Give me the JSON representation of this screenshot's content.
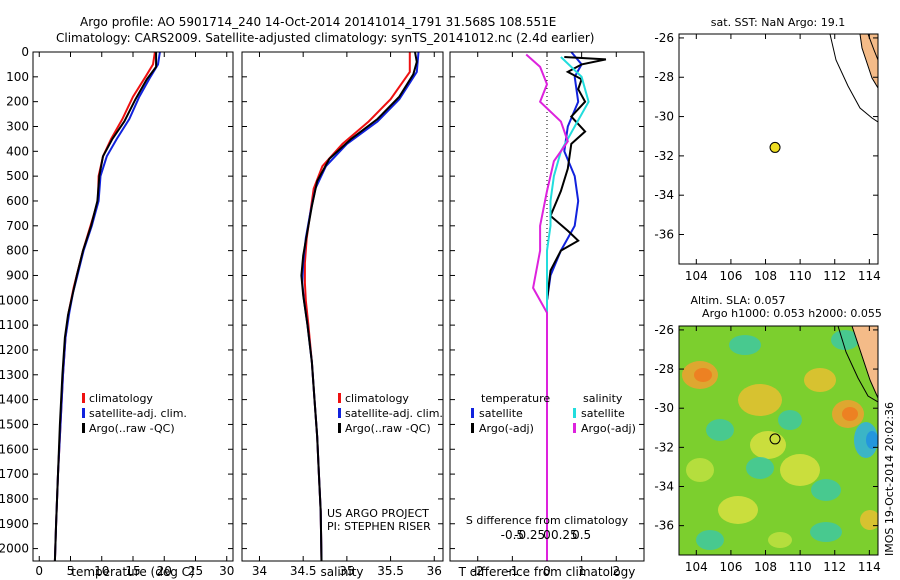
{
  "header": {
    "title_line1": "Argo profile: AO 5901714_240 14-Oct-2014 20141014_1791 31.568S 108.551E",
    "title_line2": "Climatology: CARS2009. Satellite-adjusted climatology: synTS_20141012.nc (2.4d earlier)"
  },
  "side_label": "IMOS 19-Oct-2014 20:02:36",
  "colors": {
    "climatology": "#ee1111",
    "satellite": "#1122dd",
    "argo": "#000000",
    "sat_salinity": "#22dddd",
    "argo_salinity": "#dd22dd",
    "land": "#f4bb88",
    "marker": "#eedd22"
  },
  "chart_data": [
    {
      "id": "temperature",
      "type": "line",
      "xlabel": "temperature (deg C)",
      "xlim": [
        -1,
        31
      ],
      "ylim": [
        2050,
        0
      ],
      "xticks": [
        0,
        5,
        10,
        15,
        20,
        25,
        30
      ],
      "yticks": [
        0,
        100,
        200,
        300,
        400,
        500,
        600,
        700,
        800,
        900,
        1000,
        1100,
        1200,
        1300,
        1400,
        1500,
        1600,
        1700,
        1800,
        1900,
        2000
      ],
      "legend": [
        "climatology",
        "satellite-adj. clim.",
        "Argo(..raw -QC)"
      ],
      "series": [
        {
          "name": "climatology",
          "color": "#ee1111",
          "points": [
            [
              18.5,
              0
            ],
            [
              18.2,
              50
            ],
            [
              17.0,
              100
            ],
            [
              15.0,
              180
            ],
            [
              13.3,
              270
            ],
            [
              11.5,
              350
            ],
            [
              10.2,
              420
            ],
            [
              9.5,
              500
            ],
            [
              9.4,
              600
            ],
            [
              8.2,
              700
            ],
            [
              7.0,
              800
            ],
            [
              6.3,
              870
            ],
            [
              5.5,
              950
            ],
            [
              4.7,
              1050
            ],
            [
              4.2,
              1150
            ],
            [
              3.8,
              1300
            ],
            [
              3.4,
              1500
            ],
            [
              3.0,
              1700
            ],
            [
              2.7,
              1900
            ],
            [
              2.5,
              2050
            ]
          ]
        },
        {
          "name": "satellite-adj. clim.",
          "color": "#1122dd",
          "points": [
            [
              19.3,
              0
            ],
            [
              19.0,
              50
            ],
            [
              17.8,
              100
            ],
            [
              16.0,
              180
            ],
            [
              14.4,
              270
            ],
            [
              12.4,
              350
            ],
            [
              10.8,
              420
            ],
            [
              9.8,
              500
            ],
            [
              9.5,
              600
            ],
            [
              8.4,
              700
            ],
            [
              7.1,
              800
            ],
            [
              6.1,
              900
            ],
            [
              5.4,
              970
            ],
            [
              4.8,
              1050
            ],
            [
              4.2,
              1150
            ],
            [
              3.8,
              1300
            ],
            [
              3.4,
              1500
            ],
            [
              3.0,
              1700
            ],
            [
              2.7,
              1900
            ],
            [
              2.5,
              2050
            ]
          ]
        },
        {
          "name": "Argo(..raw -QC)",
          "color": "#000000",
          "points": [
            [
              18.7,
              0
            ],
            [
              18.7,
              60
            ],
            [
              17.2,
              110
            ],
            [
              15.4,
              190
            ],
            [
              13.6,
              280
            ],
            [
              11.7,
              350
            ],
            [
              10.2,
              420
            ],
            [
              9.6,
              500
            ],
            [
              9.3,
              600
            ],
            [
              8.3,
              700
            ],
            [
              7.0,
              800
            ],
            [
              6.0,
              900
            ],
            [
              5.3,
              980
            ],
            [
              4.6,
              1060
            ],
            [
              4.1,
              1150
            ],
            [
              3.7,
              1300
            ],
            [
              3.3,
              1500
            ],
            [
              3.0,
              1700
            ],
            [
              2.7,
              1900
            ],
            [
              2.5,
              2050
            ]
          ]
        }
      ]
    },
    {
      "id": "salinity",
      "type": "line",
      "xlabel": "salinity",
      "xlim": [
        33.8,
        36.1
      ],
      "ylim": [
        2050,
        0
      ],
      "xticks": [
        34,
        34.5,
        35,
        35.5,
        36
      ],
      "xticklabels": [
        "34",
        "34.5",
        "35",
        "35.5",
        "36"
      ],
      "legend": [
        "climatology",
        "satellite-adj. clim.",
        "Argo(..raw -QC)"
      ],
      "annotation_line1": "US ARGO PROJECT",
      "annotation_line2": "PI: STEPHEN RISER",
      "series": [
        {
          "name": "climatology",
          "color": "#ee1111",
          "points": [
            [
              35.72,
              0
            ],
            [
              35.72,
              80
            ],
            [
              35.5,
              190
            ],
            [
              35.25,
              280
            ],
            [
              34.95,
              370
            ],
            [
              34.72,
              460
            ],
            [
              34.62,
              550
            ],
            [
              34.58,
              650
            ],
            [
              34.54,
              750
            ],
            [
              34.52,
              850
            ],
            [
              34.52,
              930
            ],
            [
              34.53,
              1000
            ],
            [
              34.56,
              1100
            ],
            [
              34.6,
              1250
            ],
            [
              34.63,
              1400
            ],
            [
              34.66,
              1550
            ],
            [
              34.68,
              1700
            ],
            [
              34.7,
              1850
            ],
            [
              34.71,
              2050
            ]
          ]
        },
        {
          "name": "satellite-adj. clim.",
          "color": "#1122dd",
          "points": [
            [
              35.82,
              0
            ],
            [
              35.8,
              80
            ],
            [
              35.6,
              190
            ],
            [
              35.35,
              280
            ],
            [
              35.0,
              370
            ],
            [
              34.76,
              460
            ],
            [
              34.64,
              550
            ],
            [
              34.58,
              650
            ],
            [
              34.53,
              750
            ],
            [
              34.5,
              850
            ],
            [
              34.49,
              930
            ],
            [
              34.51,
              1000
            ],
            [
              34.55,
              1100
            ],
            [
              34.6,
              1250
            ],
            [
              34.63,
              1400
            ],
            [
              34.66,
              1550
            ],
            [
              34.68,
              1700
            ],
            [
              34.7,
              1850
            ],
            [
              34.71,
              2050
            ]
          ]
        },
        {
          "name": "Argo(..raw -QC)",
          "color": "#000000",
          "points": [
            [
              35.78,
              0
            ],
            [
              35.8,
              40
            ],
            [
              35.76,
              90
            ],
            [
              35.6,
              180
            ],
            [
              35.35,
              270
            ],
            [
              35.05,
              350
            ],
            [
              34.8,
              430
            ],
            [
              34.66,
              520
            ],
            [
              34.6,
              620
            ],
            [
              34.55,
              720
            ],
            [
              34.5,
              820
            ],
            [
              34.48,
              900
            ],
            [
              34.5,
              980
            ],
            [
              34.55,
              1100
            ],
            [
              34.6,
              1250
            ],
            [
              34.63,
              1400
            ],
            [
              34.66,
              1550
            ],
            [
              34.68,
              1700
            ],
            [
              34.7,
              1850
            ],
            [
              34.71,
              2050
            ]
          ]
        }
      ]
    },
    {
      "id": "differences",
      "type": "line",
      "xlabel": "T difference from climatology",
      "xlim": [
        -2.8,
        2.8
      ],
      "ylim": [
        2050,
        0
      ],
      "xticks": [
        -2,
        -1,
        0,
        1,
        2
      ],
      "xticklabels": [
        "-2",
        "-1",
        "0",
        "1",
        "2"
      ],
      "top_scale_title": "S difference from climatology",
      "top_scale_ticks": [
        -0.5,
        -0.25,
        0,
        0.25,
        0.5
      ],
      "top_scale_ticklabels": [
        "-0.5",
        "-0.25",
        "0",
        "0.25",
        "0.5"
      ],
      "legend_temperature_title": "temperature",
      "legend_salinity_title": "salinity",
      "legend_temperature": [
        "satellite",
        "Argo(-adj)"
      ],
      "legend_salinity": [
        "satellite",
        "Argo(-adj)"
      ],
      "series": [
        {
          "name": "T satellite",
          "color": "#1122dd",
          "points": [
            [
              0.7,
              0
            ],
            [
              1.0,
              50
            ],
            [
              0.8,
              100
            ],
            [
              0.9,
              200
            ],
            [
              0.6,
              300
            ],
            [
              0.5,
              400
            ],
            [
              0.8,
              500
            ],
            [
              0.9,
              600
            ],
            [
              0.8,
              700
            ],
            [
              0.4,
              800
            ],
            [
              0.1,
              900
            ],
            [
              0.0,
              1000
            ],
            [
              0.0,
              1500
            ],
            [
              0.0,
              2050
            ]
          ]
        },
        {
          "name": "T Argo(-adj)",
          "color": "#000000",
          "points": [
            [
              0.5,
              20
            ],
            [
              1.7,
              30
            ],
            [
              1.0,
              50
            ],
            [
              0.6,
              80
            ],
            [
              1.0,
              110
            ],
            [
              0.9,
              150
            ],
            [
              1.1,
              200
            ],
            [
              0.7,
              260
            ],
            [
              1.1,
              320
            ],
            [
              0.7,
              370
            ],
            [
              0.6,
              470
            ],
            [
              0.4,
              560
            ],
            [
              0.1,
              660
            ],
            [
              0.6,
              720
            ],
            [
              0.9,
              760
            ],
            [
              0.4,
              800
            ],
            [
              0.1,
              880
            ],
            [
              0.0,
              1000
            ],
            [
              0.0,
              2050
            ]
          ]
        },
        {
          "name": "S satellite",
          "color": "#22dddd",
          "points": [
            [
              0.2,
              20
            ],
            [
              0.5,
              100
            ],
            [
              0.6,
              200
            ],
            [
              0.4,
              300
            ],
            [
              0.2,
              400
            ],
            [
              0.1,
              500
            ],
            [
              0.05,
              600
            ],
            [
              0.05,
              700
            ],
            [
              0.0,
              800
            ],
            [
              0.0,
              1500
            ],
            [
              0.0,
              2050
            ]
          ]
        },
        {
          "name": "S Argo(-adj)",
          "color": "#dd22dd",
          "points": [
            [
              -0.3,
              10
            ],
            [
              -0.1,
              60
            ],
            [
              0.0,
              130
            ],
            [
              -0.1,
              200
            ],
            [
              0.2,
              280
            ],
            [
              0.3,
              360
            ],
            [
              0.1,
              440
            ],
            [
              0.0,
              560
            ],
            [
              -0.1,
              700
            ],
            [
              -0.1,
              800
            ],
            [
              -0.2,
              950
            ],
            [
              0.0,
              1050
            ],
            [
              0.0,
              2050
            ]
          ]
        }
      ]
    },
    {
      "id": "sst_map",
      "type": "scatter",
      "title": "sat. SST: NaN Argo: 19.1",
      "xlim": [
        103,
        114.5
      ],
      "ylim": [
        -37.5,
        -25.8
      ],
      "xticks": [
        104,
        106,
        108,
        110,
        112,
        114
      ],
      "yticks": [
        -26,
        -28,
        -30,
        -32,
        -34,
        -36
      ],
      "float_position": [
        108.55,
        -31.57
      ]
    },
    {
      "id": "sla_map",
      "type": "heatmap",
      "title_line1": "Altim. SLA: 0.057",
      "title_line2": "Argo h1000: 0.053 h2000: 0.055",
      "xlim": [
        103,
        114.5
      ],
      "ylim": [
        -37.5,
        -25.8
      ],
      "xticks": [
        104,
        106,
        108,
        110,
        112,
        114
      ],
      "yticks": [
        -26,
        -28,
        -30,
        -32,
        -34,
        -36
      ],
      "float_position": [
        108.55,
        -31.57
      ]
    }
  ]
}
